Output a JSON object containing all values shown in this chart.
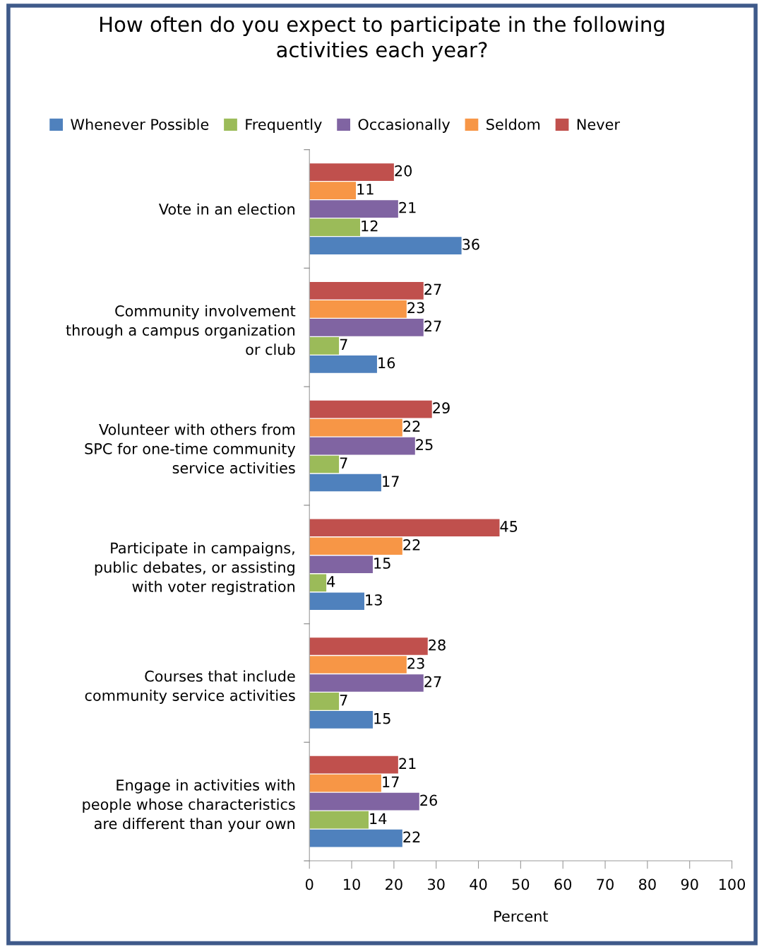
{
  "chart_data": {
    "type": "bar",
    "orientation": "horizontal",
    "title": "How often do you expect to participate in the following\nactivities each year?",
    "xlabel": "Percent",
    "categories": [
      "Vote in an election",
      "Community involvement\nthrough a campus organization\nor club",
      "Volunteer with others from\nSPC for one-time community\nservice activities",
      "Participate in campaigns,\npublic debates, or assisting\nwith voter registration",
      "Courses that include\ncommunity service activities",
      "Engage in activities with\npeople whose characteristics\nare different than your own"
    ],
    "series": [
      {
        "name": "Whenever Possible",
        "color": "#4f81bd",
        "values": [
          36,
          16,
          17,
          13,
          15,
          22
        ]
      },
      {
        "name": "Frequently",
        "color": "#9bbb59",
        "values": [
          12,
          7,
          7,
          4,
          7,
          14
        ]
      },
      {
        "name": "Occasionally",
        "color": "#8064a2",
        "values": [
          21,
          27,
          25,
          15,
          27,
          26
        ]
      },
      {
        "name": "Seldom",
        "color": "#f79646",
        "values": [
          11,
          23,
          22,
          22,
          23,
          17
        ]
      },
      {
        "name": "Never",
        "color": "#c0504d",
        "values": [
          20,
          27,
          29,
          45,
          28,
          21
        ]
      }
    ],
    "xlim": [
      0,
      100
    ],
    "xticks": [
      0,
      10,
      20,
      30,
      40,
      50,
      60,
      70,
      80,
      90,
      100
    ],
    "data_labels": true,
    "grid": false,
    "legend": "top"
  }
}
